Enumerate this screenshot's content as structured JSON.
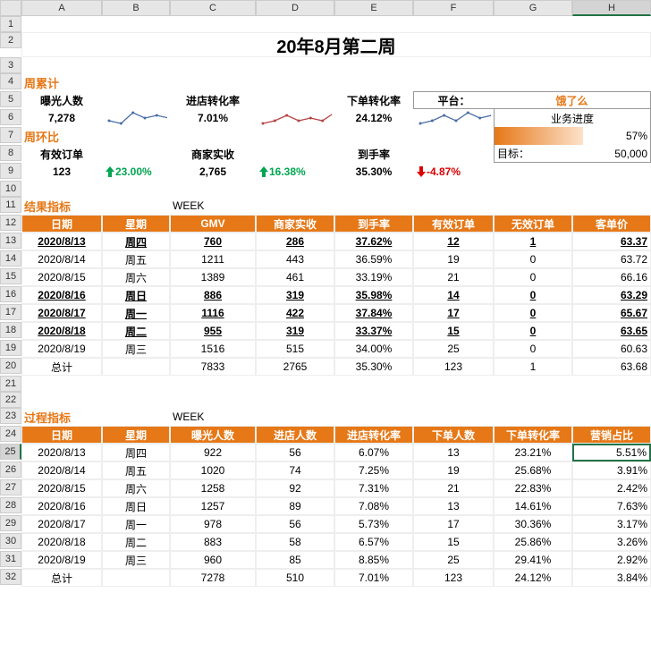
{
  "title": "20年8月第二周",
  "sections": {
    "cumulative_label": "周累计",
    "wow_label": "周环比",
    "result_label": "结果指标",
    "process_label": "过程指标",
    "week_label": "WEEK"
  },
  "kpi_cumulative": {
    "exposure_label": "曝光人数",
    "exposure_value": "7,278",
    "visit_rate_label": "进店转化率",
    "visit_rate_value": "7.01%",
    "order_rate_label": "下单转化率",
    "order_rate_value": "24.12%"
  },
  "kpi_wow": {
    "valid_order_label": "有效订单",
    "valid_order_value": "123",
    "valid_order_change": "23.00%",
    "merchant_label": "商家实收",
    "merchant_value": "2,765",
    "merchant_change": "16.38%",
    "arrival_label": "到手率",
    "arrival_value": "35.30%",
    "arrival_change": "-4.87%"
  },
  "platform": {
    "platform_label": "平台：",
    "platform_value": "饿了么",
    "progress_label": "业务进度",
    "progress_value": "57%",
    "target_label": "目标：",
    "target_value": "50,000"
  },
  "sparklines": {
    "exposure": [
      3,
      2,
      6,
      4,
      5,
      4,
      5
    ],
    "visit": [
      2,
      3,
      5,
      3,
      4,
      3,
      6
    ],
    "order": [
      2,
      3,
      5,
      3,
      6,
      4,
      5
    ]
  },
  "result_table": {
    "headers": [
      "日期",
      "星期",
      "GMV",
      "商家实收",
      "到手率",
      "有效订单",
      "无效订单",
      "客单价"
    ],
    "rows": [
      {
        "date": "2020/8/13",
        "day": "周四",
        "gmv": "760",
        "merchant": "286",
        "rate": "37.62%",
        "valid": "12",
        "invalid": "1",
        "price": "63.37",
        "u": true
      },
      {
        "date": "2020/8/14",
        "day": "周五",
        "gmv": "1211",
        "merchant": "443",
        "rate": "36.59%",
        "valid": "19",
        "invalid": "0",
        "price": "63.72",
        "u": false
      },
      {
        "date": "2020/8/15",
        "day": "周六",
        "gmv": "1389",
        "merchant": "461",
        "rate": "33.19%",
        "valid": "21",
        "invalid": "0",
        "price": "66.16",
        "u": false
      },
      {
        "date": "2020/8/16",
        "day": "周日",
        "gmv": "886",
        "merchant": "319",
        "rate": "35.98%",
        "valid": "14",
        "invalid": "0",
        "price": "63.29",
        "u": true
      },
      {
        "date": "2020/8/17",
        "day": "周一",
        "gmv": "1116",
        "merchant": "422",
        "rate": "37.84%",
        "valid": "17",
        "invalid": "0",
        "price": "65.67",
        "u": true
      },
      {
        "date": "2020/8/18",
        "day": "周二",
        "gmv": "955",
        "merchant": "319",
        "rate": "33.37%",
        "valid": "15",
        "invalid": "0",
        "price": "63.65",
        "u": true
      },
      {
        "date": "2020/8/19",
        "day": "周三",
        "gmv": "1516",
        "merchant": "515",
        "rate": "34.00%",
        "valid": "25",
        "invalid": "0",
        "price": "60.63",
        "u": false
      }
    ],
    "total_label": "总计",
    "totals": {
      "gmv": "7833",
      "merchant": "2765",
      "rate": "35.30%",
      "valid": "123",
      "invalid": "1",
      "price": "63.68"
    }
  },
  "process_table": {
    "headers": [
      "日期",
      "星期",
      "曝光人数",
      "进店人数",
      "进店转化率",
      "下单人数",
      "下单转化率",
      "营销占比"
    ],
    "rows": [
      {
        "date": "2020/8/13",
        "day": "周四",
        "c1": "922",
        "c2": "56",
        "c3": "6.07%",
        "c4": "13",
        "c5": "23.21%",
        "c6": "5.51%"
      },
      {
        "date": "2020/8/14",
        "day": "周五",
        "c1": "1020",
        "c2": "74",
        "c3": "7.25%",
        "c4": "19",
        "c5": "25.68%",
        "c6": "3.91%"
      },
      {
        "date": "2020/8/15",
        "day": "周六",
        "c1": "1258",
        "c2": "92",
        "c3": "7.31%",
        "c4": "21",
        "c5": "22.83%",
        "c6": "2.42%"
      },
      {
        "date": "2020/8/16",
        "day": "周日",
        "c1": "1257",
        "c2": "89",
        "c3": "7.08%",
        "c4": "13",
        "c5": "14.61%",
        "c6": "7.63%"
      },
      {
        "date": "2020/8/17",
        "day": "周一",
        "c1": "978",
        "c2": "56",
        "c3": "5.73%",
        "c4": "17",
        "c5": "30.36%",
        "c6": "3.17%"
      },
      {
        "date": "2020/8/18",
        "day": "周二",
        "c1": "883",
        "c2": "58",
        "c3": "6.57%",
        "c4": "15",
        "c5": "25.86%",
        "c6": "3.26%"
      },
      {
        "date": "2020/8/19",
        "day": "周三",
        "c1": "960",
        "c2": "85",
        "c3": "8.85%",
        "c4": "25",
        "c5": "29.41%",
        "c6": "2.92%"
      }
    ],
    "total_label": "总计",
    "totals": {
      "c1": "7278",
      "c2": "510",
      "c3": "7.01%",
      "c4": "123",
      "c5": "24.12%",
      "c6": "3.84%"
    }
  },
  "colors": {
    "accent": "#e67817",
    "green": "#00a651",
    "red": "#dd0000",
    "header_bg": "#e67817",
    "grid": "#eee"
  },
  "col_letters": [
    "A",
    "B",
    "C",
    "D",
    "E",
    "F",
    "G",
    "H"
  ]
}
